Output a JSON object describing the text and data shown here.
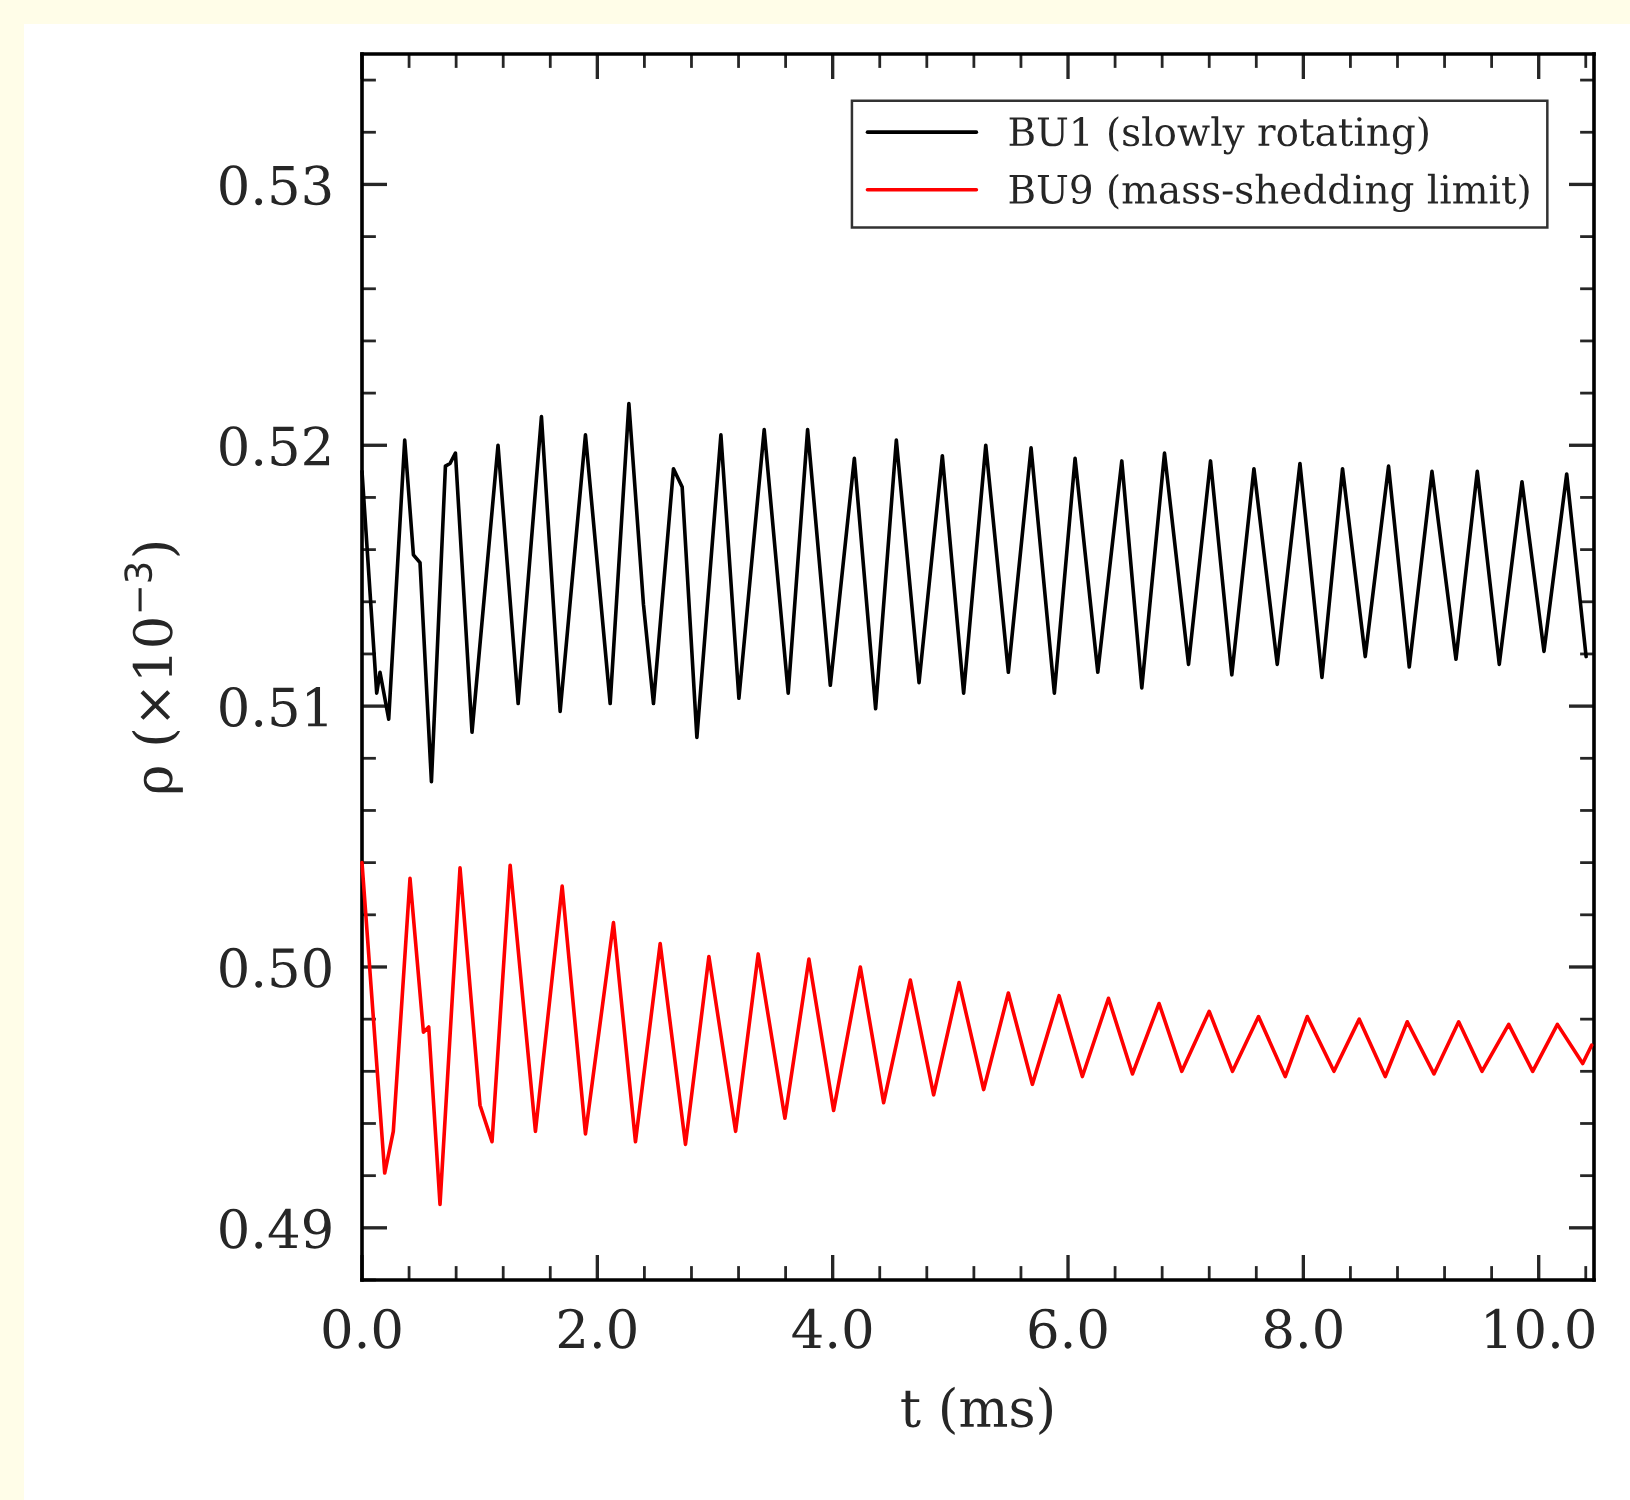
{
  "chart_data": {
    "type": "line",
    "xlabel": "t (ms)",
    "ylabel": "ρ (×10$^{−3}$)",
    "xlim": [
      0,
      10.47
    ],
    "ylim": [
      0.488,
      0.535
    ],
    "xticks": [
      {
        "value": 0,
        "label": "0.0"
      },
      {
        "value": 0.4,
        "label": null
      },
      {
        "value": 0.8,
        "label": null
      },
      {
        "value": 1.2,
        "label": null
      },
      {
        "value": 1.6,
        "label": null
      },
      {
        "value": 2,
        "label": "2.0"
      },
      {
        "value": 2.4,
        "label": null
      },
      {
        "value": 2.8,
        "label": null
      },
      {
        "value": 3.2,
        "label": null
      },
      {
        "value": 3.6,
        "label": null
      },
      {
        "value": 4,
        "label": "4.0"
      },
      {
        "value": 4.4,
        "label": null
      },
      {
        "value": 4.8,
        "label": null
      },
      {
        "value": 5.2,
        "label": null
      },
      {
        "value": 5.6,
        "label": null
      },
      {
        "value": 6,
        "label": "6.0"
      },
      {
        "value": 6.4,
        "label": null
      },
      {
        "value": 6.8,
        "label": null
      },
      {
        "value": 7.2,
        "label": null
      },
      {
        "value": 7.6,
        "label": null
      },
      {
        "value": 8,
        "label": "8.0"
      },
      {
        "value": 8.4,
        "label": null
      },
      {
        "value": 8.8,
        "label": null
      },
      {
        "value": 9.2,
        "label": null
      },
      {
        "value": 9.6,
        "label": null
      },
      {
        "value": 10,
        "label": "10.0"
      },
      {
        "value": 10.4,
        "label": null
      }
    ],
    "yticks": [
      {
        "value": 0.488,
        "label": null
      },
      {
        "value": 0.49,
        "label": "0.49"
      },
      {
        "value": 0.492,
        "label": null
      },
      {
        "value": 0.494,
        "label": null
      },
      {
        "value": 0.496,
        "label": null
      },
      {
        "value": 0.498,
        "label": null
      },
      {
        "value": 0.5,
        "label": "0.50"
      },
      {
        "value": 0.502,
        "label": null
      },
      {
        "value": 0.504,
        "label": null
      },
      {
        "value": 0.506,
        "label": null
      },
      {
        "value": 0.508,
        "label": null
      },
      {
        "value": 0.51,
        "label": "0.51"
      },
      {
        "value": 0.512,
        "label": null
      },
      {
        "value": 0.514,
        "label": null
      },
      {
        "value": 0.516,
        "label": null
      },
      {
        "value": 0.518,
        "label": null
      },
      {
        "value": 0.52,
        "label": "0.52"
      },
      {
        "value": 0.522,
        "label": null
      },
      {
        "value": 0.524,
        "label": null
      },
      {
        "value": 0.526,
        "label": null
      },
      {
        "value": 0.528,
        "label": null
      },
      {
        "value": 0.53,
        "label": "0.53"
      },
      {
        "value": 0.532,
        "label": null
      },
      {
        "value": 0.534,
        "label": null
      }
    ],
    "grid": false,
    "legend": "top right",
    "line_style": "solid",
    "marker": "none",
    "series": [
      {
        "name": "BU1 (slowly rotating)",
        "color": "#000000",
        "x": [
          0.0,
          0.125,
          0.153,
          0.227,
          0.363,
          0.437,
          0.493,
          0.59,
          0.709,
          0.748,
          0.794,
          0.935,
          1.156,
          1.327,
          1.525,
          1.684,
          1.899,
          2.109,
          2.268,
          2.392,
          2.477,
          2.647,
          2.721,
          2.846,
          3.05,
          3.203,
          3.418,
          3.622,
          3.787,
          3.98,
          4.184,
          4.365,
          4.541,
          4.734,
          4.932,
          5.113,
          5.301,
          5.493,
          5.686,
          5.884,
          6.06,
          6.253,
          6.457,
          6.627,
          6.82,
          7.024,
          7.211,
          7.392,
          7.58,
          7.778,
          7.971,
          8.158,
          8.333,
          8.526,
          8.724,
          8.9,
          9.093,
          9.297,
          9.478,
          9.665,
          9.858,
          10.045,
          10.238,
          10.403
        ],
        "values": [
          0.519,
          0.5105,
          0.5113,
          0.5095,
          0.5202,
          0.5158,
          0.5155,
          0.5071,
          0.5192,
          0.5193,
          0.5197,
          0.509,
          0.52,
          0.5101,
          0.5211,
          0.5098,
          0.5204,
          0.5101,
          0.5216,
          0.5139,
          0.5101,
          0.5191,
          0.5184,
          0.5088,
          0.5204,
          0.5103,
          0.5206,
          0.5105,
          0.5206,
          0.5108,
          0.5195,
          0.5099,
          0.5202,
          0.5109,
          0.5196,
          0.5105,
          0.52,
          0.5113,
          0.5199,
          0.5105,
          0.5195,
          0.5113,
          0.5194,
          0.5107,
          0.5197,
          0.5116,
          0.5194,
          0.5112,
          0.5191,
          0.5116,
          0.5193,
          0.5111,
          0.5191,
          0.5119,
          0.5192,
          0.5115,
          0.519,
          0.5118,
          0.519,
          0.5116,
          0.5186,
          0.5121,
          0.5189,
          0.5119
        ]
      },
      {
        "name": "BU9 (mass-shedding limit)",
        "color": "#ff0000",
        "x": [
          0.0,
          0.193,
          0.266,
          0.408,
          0.522,
          0.567,
          0.663,
          0.833,
          1.003,
          1.105,
          1.259,
          1.474,
          1.701,
          1.899,
          2.137,
          2.324,
          2.534,
          2.749,
          2.948,
          3.175,
          3.367,
          3.594,
          3.798,
          4.008,
          4.235,
          4.433,
          4.66,
          4.858,
          5.074,
          5.283,
          5.493,
          5.697,
          5.924,
          6.122,
          6.344,
          6.548,
          6.774,
          6.967,
          7.2,
          7.398,
          7.619,
          7.846,
          8.033,
          8.26,
          8.475,
          8.696,
          8.883,
          9.11,
          9.32,
          9.518,
          9.745,
          9.949,
          10.159,
          10.374,
          10.45
        ],
        "values": [
          0.504,
          0.4921,
          0.4937,
          0.5034,
          0.4975,
          0.4977,
          0.4909,
          0.5038,
          0.4947,
          0.4933,
          0.5039,
          0.4937,
          0.5031,
          0.4936,
          0.5017,
          0.4933,
          0.5009,
          0.4932,
          0.5004,
          0.4937,
          0.5005,
          0.4942,
          0.5003,
          0.4945,
          0.5,
          0.4948,
          0.4995,
          0.4951,
          0.4994,
          0.4953,
          0.499,
          0.4955,
          0.4989,
          0.4958,
          0.4988,
          0.4959,
          0.4986,
          0.496,
          0.4983,
          0.496,
          0.4981,
          0.4958,
          0.4981,
          0.496,
          0.498,
          0.4958,
          0.4979,
          0.4959,
          0.4979,
          0.496,
          0.4978,
          0.496,
          0.4978,
          0.4963,
          0.497
        ]
      }
    ]
  }
}
